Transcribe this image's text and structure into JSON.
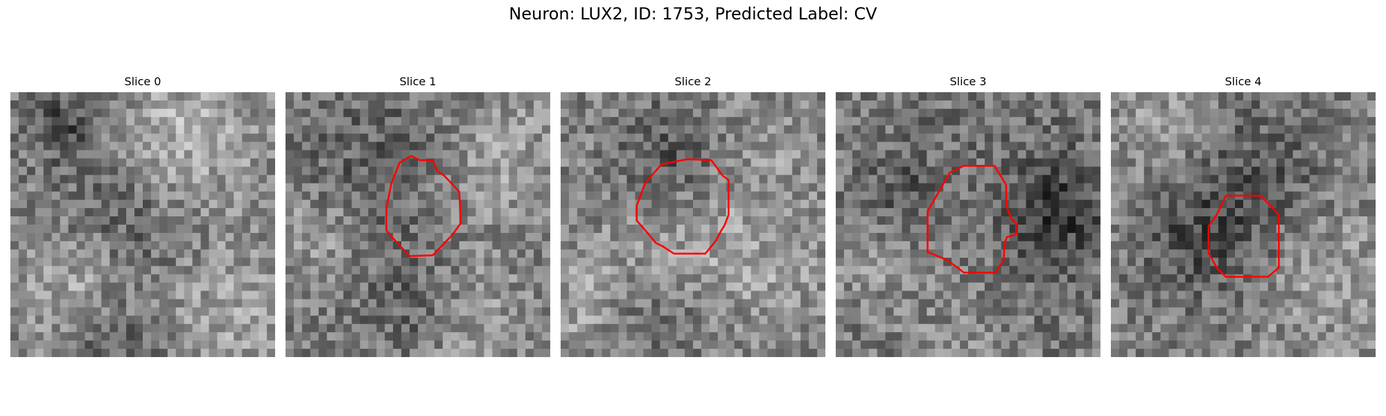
{
  "figure": {
    "title": "Neuron: LUX2, ID: 1753, Predicted Label: CV"
  },
  "panels": [
    {
      "title": "Slice 0",
      "has_contour": false
    },
    {
      "title": "Slice 1",
      "has_contour": true
    },
    {
      "title": "Slice 2",
      "has_contour": true
    },
    {
      "title": "Slice 3",
      "has_contour": true
    },
    {
      "title": "Slice 4",
      "has_contour": true
    }
  ],
  "colors": {
    "contour": "#ff0000",
    "colormap": "gray"
  }
}
